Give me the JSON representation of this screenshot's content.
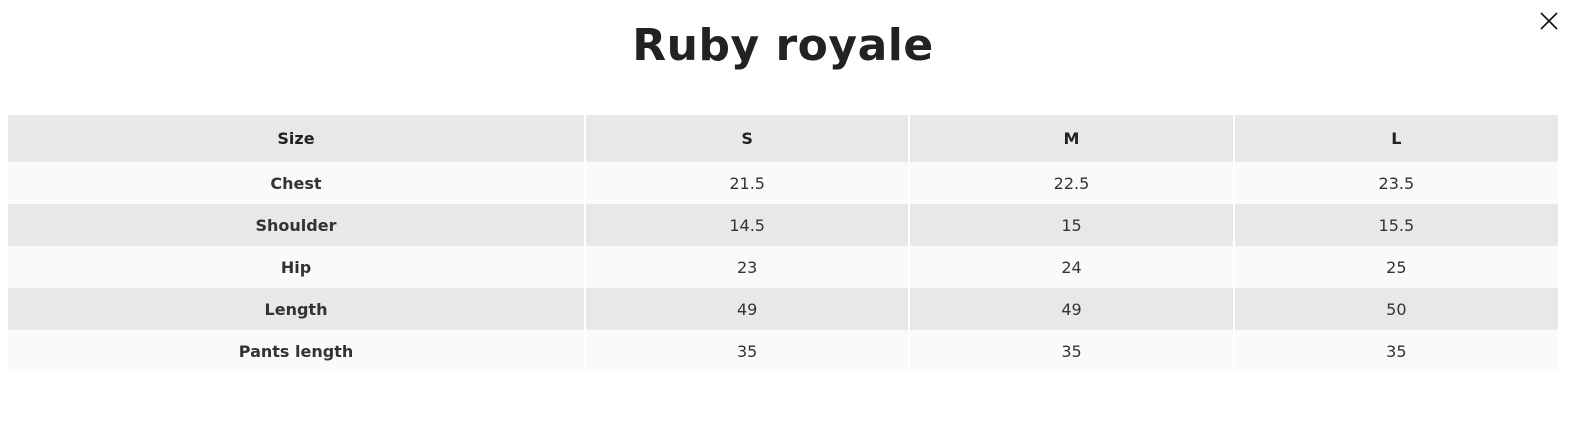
{
  "title": "Ruby royale",
  "close_icon": "close-icon",
  "table": {
    "headers": [
      "Size",
      "S",
      "M",
      "L"
    ],
    "rows": [
      [
        "Chest",
        "21.5",
        "22.5",
        "23.5"
      ],
      [
        "Shoulder",
        "14.5",
        "15",
        "15.5"
      ],
      [
        "Hip",
        "23",
        "24",
        "25"
      ],
      [
        "Length",
        "49",
        "49",
        "50"
      ],
      [
        "Pants length",
        "35",
        "35",
        "35"
      ]
    ]
  }
}
